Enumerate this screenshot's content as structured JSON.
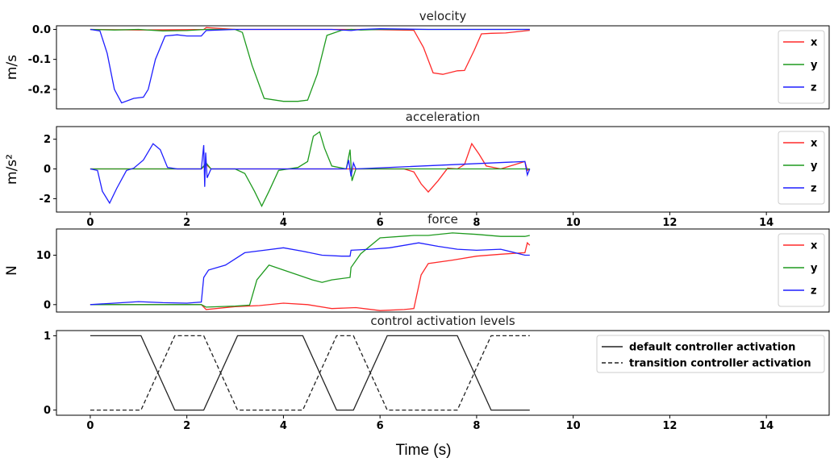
{
  "xlabel": "Time (s)",
  "colors": {
    "x": "#ff2a2a",
    "y": "#1e9a1e",
    "z": "#1f1fff",
    "black": "#222222"
  },
  "chart_data": [
    {
      "type": "line",
      "title": "velocity",
      "ylabel": "m/s",
      "xlim": [
        -0.7,
        15.3
      ],
      "ylim": [
        -0.265,
        0.012
      ],
      "yticks": [
        0.0,
        -0.1,
        -0.2
      ],
      "ytick_labels": [
        "0.0",
        "-0.1",
        "-0.2"
      ],
      "xticks_visible": false,
      "legend": {
        "position": "top-right",
        "entries": [
          "x",
          "y",
          "z"
        ]
      },
      "series": [
        {
          "name": "x",
          "color_key": "x",
          "x": [
            0,
            1,
            2,
            2.35,
            2.4,
            3,
            4,
            5,
            5.4,
            5.6,
            6,
            6.7,
            6.9,
            7.1,
            7.3,
            7.6,
            7.75,
            7.95,
            8.1,
            8.3,
            8.6,
            9.1
          ],
          "y": [
            0,
            -0.002,
            -0.001,
            0,
            0.006,
            0,
            0,
            0,
            0,
            0,
            -0.001,
            -0.003,
            -0.06,
            -0.145,
            -0.15,
            -0.138,
            -0.137,
            -0.07,
            -0.015,
            -0.013,
            -0.012,
            -0.003
          ]
        },
        {
          "name": "y",
          "color_key": "y",
          "x": [
            0,
            0.5,
            1,
            1.5,
            2,
            2.4,
            3,
            3.15,
            3.35,
            3.6,
            4,
            4.3,
            4.5,
            4.7,
            4.9,
            5.2,
            5.4,
            5.6,
            6,
            7,
            8,
            9.1
          ],
          "y": [
            0,
            -0.002,
            0,
            -0.005,
            -0.004,
            0,
            0,
            -0.01,
            -0.12,
            -0.23,
            -0.24,
            -0.24,
            -0.236,
            -0.15,
            -0.02,
            -0.003,
            0,
            -0.002,
            0,
            0,
            0,
            0
          ]
        },
        {
          "name": "z",
          "color_key": "z",
          "x": [
            0,
            0.2,
            0.35,
            0.5,
            0.65,
            0.9,
            1.1,
            1.2,
            1.35,
            1.55,
            1.8,
            2,
            2.3,
            2.4,
            3,
            4,
            5,
            5.4,
            5.6,
            6,
            7,
            8,
            9.1
          ],
          "y": [
            0,
            -0.005,
            -0.08,
            -0.2,
            -0.245,
            -0.23,
            -0.226,
            -0.2,
            -0.1,
            -0.022,
            -0.018,
            -0.022,
            -0.022,
            -0.004,
            0,
            0,
            0,
            -0.004,
            0,
            0.002,
            0,
            0,
            0
          ]
        }
      ]
    },
    {
      "type": "line",
      "title": "acceleration",
      "ylabel": "m/s²",
      "xlim": [
        -0.7,
        15.3
      ],
      "ylim": [
        -2.9,
        2.85
      ],
      "yticks": [
        2,
        0,
        -2
      ],
      "ytick_labels": [
        "2",
        "0",
        "-2"
      ],
      "xticks_visible": true,
      "legend": {
        "position": "top-right",
        "entries": [
          "x",
          "y",
          "z"
        ]
      },
      "series": [
        {
          "name": "x",
          "color_key": "x",
          "x": [
            0,
            2.3,
            2.4,
            2.5,
            6.5,
            6.7,
            6.85,
            7,
            7.2,
            7.4,
            7.6,
            7.75,
            7.9,
            8.05,
            8.2,
            8.5,
            9,
            9.05,
            9.1
          ],
          "y": [
            0,
            0,
            0.3,
            0,
            0,
            -0.2,
            -1.0,
            -1.55,
            -0.8,
            0.05,
            0,
            0.3,
            1.7,
            1.0,
            0.2,
            0,
            0.5,
            -0.1,
            0
          ]
        },
        {
          "name": "y",
          "color_key": "y",
          "x": [
            0,
            2.3,
            2.4,
            2.5,
            3,
            3.2,
            3.4,
            3.55,
            3.7,
            3.9,
            4.3,
            4.5,
            4.62,
            4.75,
            4.85,
            5,
            5.3,
            5.38,
            5.42,
            5.5,
            9.1
          ],
          "y": [
            0,
            0,
            0.4,
            0,
            0,
            -0.3,
            -1.5,
            -2.5,
            -1.5,
            -0.1,
            0.1,
            0.5,
            2.2,
            2.5,
            1.4,
            0.2,
            0,
            1.3,
            -0.8,
            0,
            0
          ]
        },
        {
          "name": "z",
          "color_key": "z",
          "x": [
            0,
            0.15,
            0.25,
            0.4,
            0.55,
            0.75,
            0.9,
            1.1,
            1.3,
            1.45,
            1.6,
            1.8,
            2.3,
            2.35,
            2.37,
            2.39,
            2.42,
            2.5,
            5.3,
            5.35,
            5.4,
            5.45,
            5.5,
            9,
            9.05,
            9.1
          ],
          "y": [
            0,
            -0.1,
            -1.5,
            -2.3,
            -1.3,
            -0.1,
            0.05,
            0.6,
            1.7,
            1.3,
            0.1,
            0,
            0,
            1.6,
            -1.2,
            1.1,
            -0.6,
            0,
            0,
            0.6,
            -0.5,
            0.4,
            0,
            0.5,
            -0.4,
            0
          ]
        }
      ]
    },
    {
      "type": "line",
      "title": "force",
      "ylabel": "N",
      "xlim": [
        -0.7,
        15.3
      ],
      "ylim": [
        -1.5,
        15.3
      ],
      "yticks": [
        10,
        0
      ],
      "ytick_labels": [
        "10",
        "0"
      ],
      "xticks_visible": false,
      "legend": {
        "position": "top-right",
        "entries": [
          "x",
          "y",
          "z"
        ]
      },
      "series": [
        {
          "name": "x",
          "color_key": "x",
          "x": [
            0,
            2,
            2.3,
            2.4,
            3,
            3.5,
            4,
            4.5,
            5,
            5.5,
            6,
            6.5,
            6.7,
            6.85,
            7,
            7.5,
            8,
            8.5,
            9,
            9.05,
            9.1
          ],
          "y": [
            0,
            0,
            0,
            -1.0,
            -0.4,
            -0.2,
            0.3,
            0,
            -0.8,
            -0.6,
            -1.2,
            -1.0,
            -0.8,
            6,
            8.3,
            9.0,
            9.8,
            10.2,
            10.5,
            12.5,
            12.0
          ]
        },
        {
          "name": "y",
          "color_key": "y",
          "x": [
            0,
            2.3,
            2.4,
            3,
            3.3,
            3.45,
            3.7,
            4,
            4.3,
            4.6,
            4.8,
            5,
            5.38,
            5.4,
            5.6,
            6,
            6.7,
            7,
            7.5,
            8,
            8.5,
            9,
            9.1
          ],
          "y": [
            0,
            0,
            -0.5,
            -0.3,
            -0.1,
            5,
            8.0,
            7.0,
            6.0,
            5.0,
            4.5,
            5.0,
            5.5,
            7.5,
            10.3,
            13.5,
            14.0,
            14.0,
            14.5,
            14.2,
            13.8,
            13.8,
            14.0
          ]
        },
        {
          "name": "z",
          "color_key": "z",
          "x": [
            0,
            0.5,
            1,
            1.5,
            2,
            2.3,
            2.35,
            2.45,
            2.8,
            3.2,
            3.6,
            4,
            4.4,
            4.8,
            5.2,
            5.38,
            5.4,
            5.8,
            6.2,
            6.8,
            7.2,
            7.6,
            8,
            8.5,
            9,
            9.1
          ],
          "y": [
            0,
            0.3,
            0.6,
            0.4,
            0.3,
            0.5,
            5.5,
            7.0,
            8.0,
            10.5,
            11.0,
            11.5,
            10.8,
            10.0,
            9.8,
            9.8,
            11.0,
            11.2,
            11.5,
            12.5,
            11.8,
            11.2,
            11.0,
            11.2,
            10.0,
            10.0
          ]
        }
      ]
    },
    {
      "type": "line",
      "title": "control activation levels",
      "ylabel": "",
      "xlim": [
        -0.7,
        15.3
      ],
      "ylim": [
        -0.07,
        1.07
      ],
      "yticks": [
        1,
        0
      ],
      "ytick_labels": [
        "1",
        "0"
      ],
      "xticks_visible": true,
      "xticks": [
        0,
        2,
        4,
        6,
        8,
        10,
        12,
        14
      ],
      "xtick_labels": [
        "0",
        "2",
        "4",
        "6",
        "8",
        "10",
        "12",
        "14"
      ],
      "legend": {
        "position": "top-right",
        "entries": [
          "default controller activation",
          "transition controller activation"
        ]
      },
      "series": [
        {
          "name": "default controller activation",
          "color_key": "black",
          "dash": false,
          "x": [
            0,
            1.05,
            1.75,
            2.35,
            3.05,
            4.4,
            5.1,
            5.45,
            6.15,
            7.6,
            8.3,
            9.1
          ],
          "y": [
            1,
            1,
            0,
            0,
            1,
            1,
            0,
            0,
            1,
            1,
            0,
            0
          ]
        },
        {
          "name": "transition controller activation",
          "color_key": "black",
          "dash": true,
          "x": [
            0,
            1.05,
            1.75,
            2.35,
            3.05,
            4.4,
            5.1,
            5.45,
            6.15,
            7.6,
            8.3,
            9.1
          ],
          "y": [
            0,
            0,
            1,
            1,
            0,
            0,
            1,
            1,
            0,
            0,
            1,
            1
          ]
        }
      ]
    }
  ]
}
